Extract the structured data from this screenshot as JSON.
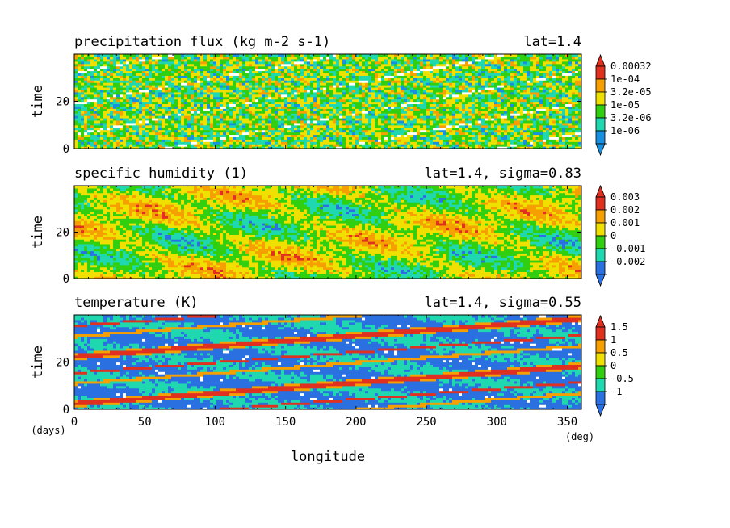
{
  "chart_data": [
    {
      "type": "heatmap",
      "title": "precipitation flux (kg m-2 s-1)",
      "annotation": "lat=1.4",
      "xlabel": "",
      "ylabel": "time",
      "xlim": [
        0,
        360
      ],
      "ylim": [
        0,
        40
      ],
      "y_ticks": [
        0,
        20
      ],
      "colorbar": {
        "labels": [
          "0.00032",
          "1e-04",
          "3.2e-05",
          "1e-05",
          "3.2e-06",
          "1e-06"
        ],
        "colors": [
          "#e03020",
          "#f5a000",
          "#f0e000",
          "#30d010",
          "#20d8b0",
          "#1890e0"
        ],
        "top_arrow": "#e03020",
        "bottom_arrow": "#1890e0"
      },
      "pattern": "noisy speckle with low-value (white) streaks drifting toward later time with increasing longitude"
    },
    {
      "type": "heatmap",
      "title": "specific humidity (1)",
      "annotation": "lat=1.4, sigma=0.83",
      "xlabel": "",
      "ylabel": "time",
      "xlim": [
        0,
        360
      ],
      "ylim": [
        0,
        40
      ],
      "y_ticks": [
        0,
        20
      ],
      "colorbar": {
        "labels": [
          "0.003",
          "0.002",
          "0.001",
          "0",
          "-0.001",
          "-0.002"
        ],
        "colors": [
          "#e03020",
          "#f5a000",
          "#f0e000",
          "#30d010",
          "#20d8b0",
          "#2a70e0"
        ],
        "top_arrow": "#e03020",
        "bottom_arrow": "#2a70e0"
      },
      "pattern": "mostly green/cyan field with scattered yellow patches and blue lows"
    },
    {
      "type": "heatmap",
      "title": "temperature (K)",
      "annotation": "lat=1.4, sigma=0.55",
      "xlabel": "longitude",
      "ylabel": "time",
      "xlim": [
        0,
        360
      ],
      "ylim": [
        0,
        40
      ],
      "x_ticks": [
        0,
        50,
        100,
        150,
        200,
        250,
        300,
        350
      ],
      "y_ticks": [
        0,
        20
      ],
      "x_unit": "(deg)",
      "y_unit": "(days)",
      "colorbar": {
        "labels": [
          "1.5",
          "1",
          "0.5",
          "0",
          "-0.5",
          "-1"
        ],
        "colors": [
          "#e03020",
          "#f5a000",
          "#f0e000",
          "#30d010",
          "#20d8b0",
          "#2a70e0"
        ],
        "top_arrow": "#e03020",
        "bottom_arrow": "#2a70e0"
      },
      "pattern": "blue background with red warm bands propagating eastward (slope ~ 1 degree per 0.11 day)"
    }
  ]
}
